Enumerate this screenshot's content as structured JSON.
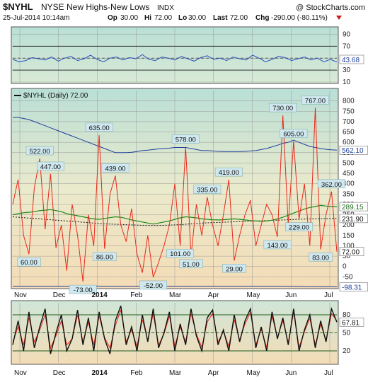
{
  "header": {
    "symbol": "$NYHL",
    "name": "NYSE New Highs-New Lows",
    "exchange": "INDX",
    "copyright": "@ StockCharts.com",
    "datetime": "25-Jul-2014 10:14am",
    "open_label": "Op",
    "open": "30.00",
    "high_label": "Hi",
    "high": "72.00",
    "low_label": "Lo",
    "low": "30.00",
    "last_label": "Last",
    "last": "72.00",
    "chg_label": "Chg",
    "chg": "-290.00 (-80.11%)"
  },
  "colors": {
    "price_line": "#e8281b",
    "ma_green": "#1a8a1a",
    "ma_dark": "#111111",
    "upper_band": "#1f3f9c",
    "rsi_line": "#3050c0",
    "stoch_k": "#111111",
    "stoch_d": "#e8281b"
  },
  "chart_data": [
    {
      "type": "line",
      "panel": "top-indicator",
      "ylim": [
        10,
        100
      ],
      "ticks": [
        90,
        70,
        50,
        30,
        10
      ],
      "value_label": "43.68",
      "series": [
        {
          "values": [
            48,
            44,
            46,
            51,
            49,
            47,
            52,
            45,
            50,
            53,
            46,
            49,
            55,
            48,
            44,
            50,
            52,
            47,
            51,
            49,
            56,
            48,
            46,
            52,
            50,
            47,
            53,
            49,
            45,
            51,
            54,
            48,
            50,
            46,
            52,
            49,
            47,
            55,
            50,
            44,
            48,
            53,
            51,
            46,
            49,
            52,
            47,
            50,
            44,
            48,
            43.68
          ]
        }
      ],
      "reference_lines": [
        70,
        50,
        30
      ]
    },
    {
      "type": "line",
      "panel": "main",
      "legend": "$NYHL (Daily) 72.00",
      "ylim": [
        -100,
        850
      ],
      "ticks": [
        800,
        750,
        700,
        650,
        600,
        550,
        500,
        450,
        400,
        350,
        300,
        250,
        200,
        150,
        100,
        50,
        0,
        -50
      ],
      "x_labels": [
        "Nov",
        "Dec",
        "2014",
        "Feb",
        "Mar",
        "Apr",
        "May",
        "Jun",
        "Jul"
      ],
      "value_labels": {
        "upper_band": "562.10",
        "ma_green": "289.15",
        "ma_dark": "231.90",
        "last": "72.00",
        "lower_band": "-98.31"
      },
      "annotations": [
        {
          "text": "522.00",
          "value": 522
        },
        {
          "text": "447.00",
          "value": 447
        },
        {
          "text": "635.00",
          "value": 635
        },
        {
          "text": "439.00",
          "value": 439
        },
        {
          "text": "578.00",
          "value": 578
        },
        {
          "text": "335.00",
          "value": 335
        },
        {
          "text": "419.00",
          "value": 419
        },
        {
          "text": "730.00",
          "value": 730
        },
        {
          "text": "605.00",
          "value": 605
        },
        {
          "text": "767.00",
          "value": 767
        },
        {
          "text": "362.00",
          "value": 362
        },
        {
          "text": "229.00",
          "value": 229
        },
        {
          "text": "143.00",
          "value": 143
        },
        {
          "text": "60.00",
          "value": 60
        },
        {
          "text": "86.00",
          "value": 86
        },
        {
          "text": "-73.00",
          "value": -73
        },
        {
          "text": "-52.00",
          "value": -52
        },
        {
          "text": "101.00",
          "value": 101
        },
        {
          "text": "51.00",
          "value": 51
        },
        {
          "text": "29.00",
          "value": 29
        },
        {
          "text": "83.00",
          "value": 83
        }
      ],
      "series": [
        {
          "key": "price",
          "values": [
            300,
            420,
            150,
            60,
            380,
            522,
            180,
            447,
            90,
            200,
            -20,
            300,
            150,
            -73,
            250,
            100,
            635,
            86,
            350,
            439,
            200,
            120,
            280,
            60,
            -30,
            150,
            -52,
            20,
            100,
            200,
            400,
            101,
            578,
            51,
            300,
            150,
            335,
            200,
            100,
            250,
            419,
            29,
            150,
            250,
            320,
            100,
            200,
            300,
            250,
            143,
            730,
            200,
            605,
            229,
            400,
            100,
            767,
            83,
            250,
            362,
            72
          ]
        },
        {
          "key": "upper_band",
          "values": [
            720,
            720,
            715,
            710,
            700,
            690,
            680,
            670,
            660,
            650,
            640,
            630,
            620,
            610,
            600,
            590,
            580,
            570,
            560,
            550,
            550,
            550,
            552,
            555,
            560,
            562,
            565,
            568,
            570,
            572,
            575,
            575,
            575,
            570,
            565,
            560,
            560,
            558,
            556,
            555,
            555,
            555,
            555,
            556,
            558,
            560,
            565,
            570,
            578,
            586,
            595,
            600,
            610,
            600,
            590,
            580,
            575,
            570,
            566,
            564,
            562.1
          ]
        },
        {
          "key": "ma_green",
          "values": [
            250,
            255,
            260,
            262,
            265,
            270,
            272,
            275,
            270,
            265,
            255,
            250,
            245,
            240,
            235,
            230,
            228,
            232,
            236,
            240,
            238,
            232,
            225,
            220,
            215,
            210,
            205,
            210,
            215,
            220,
            228,
            235,
            240,
            238,
            235,
            230,
            228,
            226,
            225,
            226,
            228,
            230,
            228,
            225,
            222,
            220,
            218,
            220,
            224,
            230,
            238,
            248,
            258,
            268,
            278,
            285,
            290,
            295,
            292,
            290,
            289.15
          ]
        },
        {
          "key": "ma_dark",
          "values": [
            240,
            238,
            236,
            234,
            232,
            230,
            228,
            226,
            224,
            222,
            220,
            218,
            216,
            214,
            212,
            210,
            208,
            206,
            205,
            204,
            203,
            202,
            201,
            200,
            199,
            198,
            198,
            198,
            199,
            200,
            201,
            202,
            204,
            206,
            208,
            210,
            211,
            212,
            213,
            214,
            215,
            216,
            217,
            218,
            219,
            220,
            221,
            222,
            223,
            224,
            225,
            226,
            227,
            228,
            229,
            230,
            230.5,
            231,
            231.4,
            231.7,
            231.9
          ]
        },
        {
          "key": "lower_band",
          "values": [
            -95,
            -95,
            -95,
            -95,
            -95,
            -95,
            -95,
            -95,
            -95,
            -95,
            -95,
            -95,
            -95,
            -95,
            -95,
            -95,
            -95,
            -95,
            -95,
            -95,
            -95,
            -95,
            -95,
            -95,
            -95,
            -95,
            -95,
            -95,
            -95,
            -95,
            -95,
            -95,
            -95,
            -95,
            -95,
            -95,
            -95,
            -95,
            -95,
            -95,
            -95,
            -95,
            -95,
            -95,
            -95,
            -95,
            -95,
            -95,
            -95,
            -95,
            -95,
            -96,
            -96,
            -96,
            -97,
            -97,
            -97,
            -98,
            -98,
            -98,
            -98.31
          ]
        }
      ]
    },
    {
      "type": "line",
      "panel": "bottom-stochastic",
      "ylim": [
        0,
        100
      ],
      "ticks": [
        80,
        50,
        20
      ],
      "x_labels": [
        "Nov",
        "Dec",
        "2014",
        "Feb",
        "Mar",
        "Apr",
        "May",
        "Jun",
        "Jul"
      ],
      "value_label": "67.81",
      "reference_lines": [
        80,
        50,
        20
      ],
      "series": [
        {
          "key": "k",
          "values": [
            30,
            70,
            20,
            85,
            25,
            60,
            90,
            15,
            50,
            80,
            20,
            40,
            88,
            30,
            75,
            20,
            85,
            40,
            15,
            70,
            95,
            30,
            60,
            20,
            80,
            35,
            90,
            25,
            50,
            85,
            20,
            65,
            30,
            90,
            45,
            20,
            75,
            88,
            30,
            55,
            20,
            80,
            35,
            70,
            90,
            25,
            60,
            20,
            85,
            40,
            75,
            30,
            90,
            20,
            55,
            80,
            25,
            70,
            35,
            90,
            67.81
          ]
        },
        {
          "key": "d",
          "values": [
            35,
            60,
            30,
            75,
            35,
            55,
            80,
            25,
            45,
            70,
            30,
            40,
            80,
            35,
            68,
            30,
            78,
            42,
            25,
            62,
            88,
            35,
            55,
            28,
            72,
            38,
            82,
            30,
            48,
            78,
            28,
            60,
            35,
            82,
            48,
            26,
            68,
            82,
            35,
            52,
            28,
            72,
            38,
            65,
            84,
            30,
            56,
            26,
            78,
            42,
            70,
            34,
            84,
            26,
            52,
            74,
            30,
            64,
            38,
            82,
            70
          ]
        }
      ]
    }
  ]
}
